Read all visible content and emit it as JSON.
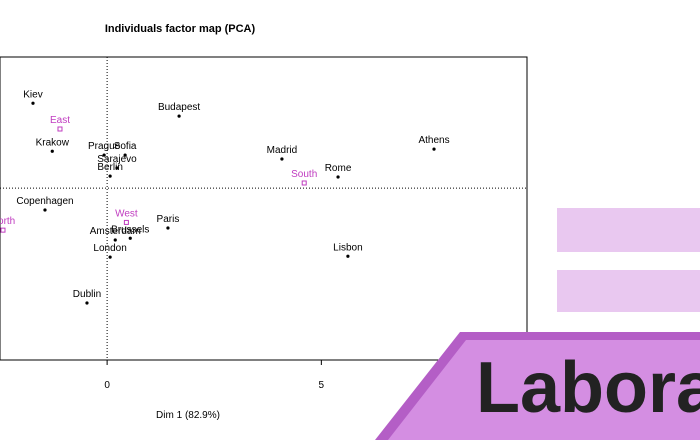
{
  "chart_data": {
    "type": "scatter",
    "title": "Individuals factor map (PCA)",
    "xlabel": "Dim 1 (82.9%)",
    "xlim": [
      -2.5,
      9.8
    ],
    "ylim": [
      -4.01,
      3.06
    ],
    "xticks": [
      0,
      5
    ],
    "series": [
      {
        "color": "#000000",
        "labels": [
          "Kiev",
          "Budapest",
          "Athens",
          "Krakow",
          "Prague",
          "Sofia",
          "Madrid",
          "Sarajevo",
          "Rome",
          "Berlin",
          "Copenhagen",
          "Paris",
          "Brussels",
          "Amsterdam",
          "London",
          "Lisbon",
          "Dublin"
        ],
        "x": [
          -1.73,
          1.68,
          7.63,
          -1.28,
          -0.07,
          0.42,
          4.08,
          0.23,
          5.39,
          0.07,
          -1.45,
          1.42,
          0.54,
          0.19,
          0.07,
          5.62,
          -0.47
        ],
        "values": [
          1.98,
          1.68,
          0.91,
          0.86,
          0.77,
          0.77,
          0.68,
          0.47,
          0.26,
          0.28,
          -0.51,
          -0.93,
          -1.17,
          -1.21,
          -1.61,
          -1.59,
          -2.68
        ]
      },
      {
        "color": "#c03cc0",
        "labels": [
          "East",
          "South",
          "West",
          "North"
        ],
        "x": [
          -1.1,
          4.6,
          0.45,
          -2.43
        ],
        "values": [
          1.38,
          0.12,
          -0.8,
          -0.98
        ]
      }
    ]
  },
  "banner": {
    "text": "Labora"
  }
}
